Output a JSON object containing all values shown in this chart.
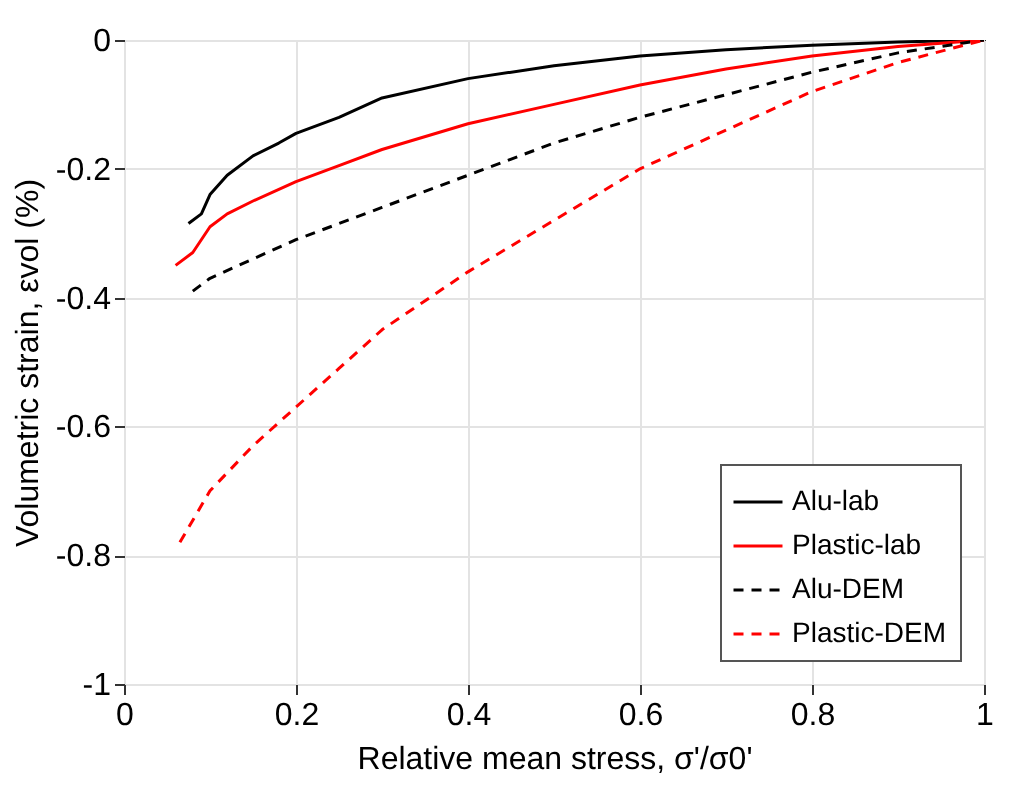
{
  "chart_data": {
    "type": "line",
    "xlabel": "Relative mean stress, σ'/σ0'",
    "ylabel": "Volumetric strain, εvol (%)",
    "xlim": [
      0,
      1
    ],
    "ylim": [
      -1,
      0
    ],
    "xticks": [
      0,
      0.2,
      0.4,
      0.6,
      0.8,
      1
    ],
    "yticks": [
      -1,
      -0.8,
      -0.6,
      -0.4,
      -0.2,
      0
    ],
    "grid": true,
    "legend": "bottom right",
    "series": [
      {
        "name": "Alu-lab",
        "color": "#000000",
        "line_style": "solid",
        "x": [
          0.075,
          0.09,
          0.1,
          0.12,
          0.15,
          0.18,
          0.2,
          0.25,
          0.3,
          0.4,
          0.5,
          0.6,
          0.7,
          0.8,
          0.9,
          1
        ],
        "values": [
          -0.285,
          -0.27,
          -0.24,
          -0.21,
          -0.18,
          -0.16,
          -0.145,
          -0.12,
          -0.09,
          -0.06,
          -0.04,
          -0.025,
          -0.015,
          -0.008,
          -0.003,
          0
        ]
      },
      {
        "name": "Plastic-lab",
        "color": "#ff0000",
        "line_style": "solid",
        "x": [
          0.06,
          0.08,
          0.1,
          0.12,
          0.15,
          0.2,
          0.25,
          0.3,
          0.4,
          0.5,
          0.6,
          0.7,
          0.8,
          0.9,
          1
        ],
        "values": [
          -0.35,
          -0.33,
          -0.29,
          -0.27,
          -0.25,
          -0.22,
          -0.195,
          -0.17,
          -0.13,
          -0.1,
          -0.07,
          -0.045,
          -0.025,
          -0.01,
          0
        ]
      },
      {
        "name": "Alu-DEM",
        "color": "#000000",
        "line_style": "dashed",
        "x": [
          0.08,
          0.1,
          0.15,
          0.2,
          0.3,
          0.4,
          0.5,
          0.6,
          0.7,
          0.8,
          0.9,
          1
        ],
        "values": [
          -0.39,
          -0.37,
          -0.34,
          -0.31,
          -0.26,
          -0.21,
          -0.16,
          -0.12,
          -0.085,
          -0.05,
          -0.02,
          0
        ]
      },
      {
        "name": "Plastic-DEM",
        "color": "#ff0000",
        "line_style": "dashed",
        "x": [
          0.065,
          0.1,
          0.15,
          0.2,
          0.25,
          0.3,
          0.4,
          0.5,
          0.6,
          0.7,
          0.8,
          0.9,
          1
        ],
        "values": [
          -0.78,
          -0.7,
          -0.63,
          -0.57,
          -0.51,
          -0.45,
          -0.36,
          -0.28,
          -0.2,
          -0.14,
          -0.08,
          -0.035,
          0
        ]
      }
    ]
  }
}
